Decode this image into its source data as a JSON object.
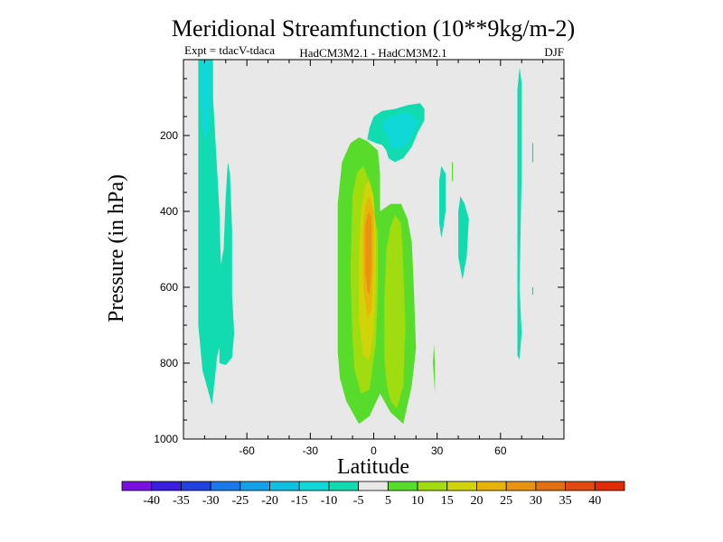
{
  "chart_data": {
    "type": "contour",
    "title": "Meridional Streamfunction (10**9kg/m-2)",
    "subtitle_left": "Expt = tdacV-tdaca",
    "subtitle_center": "HadCM3M2.1 - HadCM3M2.1",
    "subtitle_right": "DJF",
    "xlabel": "Latitude",
    "ylabel": "Pressure (in hPa)",
    "xlim": [
      -90,
      90
    ],
    "ylim": [
      1000,
      0
    ],
    "x_ticks": [
      -60,
      -30,
      0,
      30,
      60
    ],
    "y_ticks": [
      200,
      400,
      600,
      800,
      1000
    ],
    "background_color": "#e8e8e8",
    "colorbar": {
      "levels": [
        "-40",
        "-35",
        "-30",
        "-25",
        "-20",
        "-15",
        "-10",
        "-5",
        "5",
        "10",
        "15",
        "20",
        "25",
        "30",
        "35",
        "40"
      ],
      "colors": [
        "#7a10e0",
        "#3a1ee0",
        "#2040e0",
        "#1a78e8",
        "#14a0e8",
        "#10c0e0",
        "#10d8d8",
        "#10dcb0",
        "#e8e8e8",
        "#58dc2c",
        "#a0dc10",
        "#d2d40a",
        "#e8b40a",
        "#e89410",
        "#e07010",
        "#e04a10",
        "#e02a08"
      ]
    },
    "regions": [
      {
        "name": "neg-sh-column",
        "level": "-10 to -5",
        "color": "#10dcb0",
        "outline": [
          [
            -83,
            0
          ],
          [
            -76,
            0
          ],
          [
            -76,
            100
          ],
          [
            -75,
            200
          ],
          [
            -73,
            400
          ],
          [
            -72,
            600
          ],
          [
            -72,
            740
          ],
          [
            -74,
            780
          ],
          [
            -75.5,
            860
          ],
          [
            -76.5,
            910
          ],
          [
            -78,
            880
          ],
          [
            -81,
            820
          ],
          [
            -83,
            700
          ],
          [
            -83,
            300
          ]
        ]
      },
      {
        "name": "neg-sh-tongue",
        "level": "-10 to -5",
        "color": "#10dcb0",
        "outline": [
          [
            -73,
            560
          ],
          [
            -71,
            500
          ],
          [
            -70,
            360
          ],
          [
            -69,
            270
          ],
          [
            -68,
            300
          ],
          [
            -67,
            450
          ],
          [
            -67,
            620
          ],
          [
            -66,
            720
          ],
          [
            -67,
            785
          ],
          [
            -70,
            805
          ],
          [
            -73,
            800
          ]
        ]
      },
      {
        "name": "neg-sh-core",
        "level": "-15 to -10",
        "color": "#10d8d8",
        "outline": [
          [
            -82,
            0
          ],
          [
            -77,
            0
          ],
          [
            -77,
            100
          ],
          [
            -78,
            180
          ],
          [
            -79,
            210
          ],
          [
            -81,
            180
          ],
          [
            -82,
            100
          ]
        ]
      },
      {
        "name": "neg-upper",
        "level": "-10 to -5",
        "color": "#10dcb0",
        "outline": [
          [
            -3,
            210
          ],
          [
            -2,
            180
          ],
          [
            0,
            150
          ],
          [
            4,
            135
          ],
          [
            10,
            130
          ],
          [
            16,
            120
          ],
          [
            22,
            115
          ],
          [
            24,
            130
          ],
          [
            24,
            160
          ],
          [
            21,
            190
          ],
          [
            18,
            230
          ],
          [
            14,
            260
          ],
          [
            10,
            270
          ],
          [
            7,
            260
          ],
          [
            6,
            240
          ],
          [
            4,
            225
          ],
          [
            1,
            220
          ]
        ]
      },
      {
        "name": "neg-upper-core",
        "level": "-15 to -10",
        "color": "#10d8d8",
        "outline": [
          [
            4,
            180
          ],
          [
            5,
            160
          ],
          [
            8,
            150
          ],
          [
            11,
            145
          ],
          [
            16,
            140
          ],
          [
            21,
            160
          ],
          [
            20,
            185
          ],
          [
            16,
            220
          ],
          [
            12,
            235
          ],
          [
            8,
            230
          ],
          [
            7,
            210
          ],
          [
            6,
            195
          ]
        ]
      },
      {
        "name": "neg-nh-strip-1",
        "level": "-10 to -5",
        "color": "#10dcb0",
        "outline": [
          [
            31,
            320
          ],
          [
            32,
            280
          ],
          [
            34,
            300
          ],
          [
            34,
            400
          ],
          [
            33,
            440
          ],
          [
            32,
            470
          ],
          [
            31,
            430
          ]
        ]
      },
      {
        "name": "neg-nh-strip-2",
        "level": "-10 to -5",
        "color": "#10dcb0",
        "outline": [
          [
            40,
            460
          ],
          [
            40,
            400
          ],
          [
            41,
            360
          ],
          [
            43,
            380
          ],
          [
            45,
            420
          ],
          [
            44,
            520
          ],
          [
            42,
            580
          ],
          [
            40,
            520
          ]
        ]
      },
      {
        "name": "neg-nh-strip-3",
        "level": "-10 to -5",
        "color": "#10dcb0",
        "outline": [
          [
            68,
            150
          ],
          [
            68,
            80
          ],
          [
            69,
            20
          ],
          [
            70,
            60
          ],
          [
            70,
            300
          ],
          [
            69,
            600
          ],
          [
            70,
            720
          ],
          [
            69,
            790
          ],
          [
            68,
            780
          ],
          [
            68,
            500
          ]
        ]
      },
      {
        "name": "neg-nh-speck-1",
        "level": "-10 to -5",
        "color": "#10dcb0",
        "outline": [
          [
            75,
            270
          ],
          [
            75,
            220
          ],
          [
            75.5,
            220
          ],
          [
            75.5,
            270
          ]
        ]
      },
      {
        "name": "neg-nh-speck-2",
        "level": "-10 to -5",
        "color": "#10dcb0",
        "outline": [
          [
            75,
            620
          ],
          [
            75,
            600
          ],
          [
            75.5,
            600
          ],
          [
            75.5,
            620
          ]
        ]
      },
      {
        "name": "pos-main",
        "level": "5 to 10",
        "color": "#58dc2c",
        "outline": [
          [
            -17,
            770
          ],
          [
            -17,
            380
          ],
          [
            -15,
            270
          ],
          [
            -11,
            220
          ],
          [
            -7,
            205
          ],
          [
            -3,
            215
          ],
          [
            2,
            240
          ],
          [
            3,
            300
          ],
          [
            3,
            400
          ],
          [
            8,
            380
          ],
          [
            13,
            380
          ],
          [
            16,
            420
          ],
          [
            18,
            480
          ],
          [
            19,
            600
          ],
          [
            20,
            760
          ],
          [
            18,
            860
          ],
          [
            14,
            960
          ],
          [
            8,
            930
          ],
          [
            3,
            880
          ],
          [
            -2,
            940
          ],
          [
            -7,
            960
          ],
          [
            -13,
            900
          ],
          [
            -16,
            840
          ]
        ]
      },
      {
        "name": "pos-inner-left",
        "level": "10 to 15",
        "color": "#a0dc10",
        "outline": [
          [
            -10,
            740
          ],
          [
            -11,
            560
          ],
          [
            -10,
            360
          ],
          [
            -8,
            300
          ],
          [
            -5,
            280
          ],
          [
            -2,
            320
          ],
          [
            0,
            400
          ],
          [
            2,
            460
          ],
          [
            2,
            600
          ],
          [
            1,
            750
          ],
          [
            -2,
            870
          ],
          [
            -6,
            880
          ],
          [
            -9,
            820
          ]
        ]
      },
      {
        "name": "pos-inner-right",
        "level": "10 to 15",
        "color": "#a0dc10",
        "outline": [
          [
            5,
            780
          ],
          [
            5,
            640
          ],
          [
            6,
            500
          ],
          [
            8,
            440
          ],
          [
            10,
            410
          ],
          [
            13,
            430
          ],
          [
            14,
            550
          ],
          [
            15,
            700
          ],
          [
            14,
            860
          ],
          [
            11,
            920
          ],
          [
            8,
            900
          ],
          [
            6,
            850
          ]
        ]
      },
      {
        "name": "pos-level-3",
        "level": "15 to 20",
        "color": "#d2d40a",
        "outline": [
          [
            -7,
            680
          ],
          [
            -7,
            520
          ],
          [
            -6,
            400
          ],
          [
            -4,
            330
          ],
          [
            -2,
            320
          ],
          [
            0,
            360
          ],
          [
            1,
            460
          ],
          [
            1,
            600
          ],
          [
            0,
            720
          ],
          [
            -2,
            790
          ],
          [
            -5,
            780
          ]
        ]
      },
      {
        "name": "pos-level-4",
        "level": "20 to 25",
        "color": "#e8b40a",
        "outline": [
          [
            -5,
            600
          ],
          [
            -5,
            450
          ],
          [
            -4,
            380
          ],
          [
            -2,
            360
          ],
          [
            0,
            400
          ],
          [
            0,
            520
          ],
          [
            -1,
            660
          ],
          [
            -3,
            680
          ]
        ]
      },
      {
        "name": "pos-level-5",
        "level": "25 to 30",
        "color": "#e89410",
        "outline": [
          [
            -4,
            560
          ],
          [
            -4,
            440
          ],
          [
            -3,
            410
          ],
          [
            -2,
            400
          ],
          [
            -1,
            420
          ],
          [
            -1,
            540
          ],
          [
            -2,
            620
          ],
          [
            -3,
            610
          ]
        ]
      },
      {
        "name": "pos-speck-1",
        "level": "5 to 10",
        "color": "#58dc2c",
        "outline": [
          [
            29,
            880
          ],
          [
            28,
            800
          ],
          [
            28.5,
            750
          ],
          [
            29,
            800
          ]
        ]
      },
      {
        "name": "pos-speck-2",
        "level": "5 to 10",
        "color": "#58dc2c",
        "outline": [
          [
            37,
            320
          ],
          [
            37,
            270
          ],
          [
            37.5,
            270
          ],
          [
            37.5,
            320
          ]
        ]
      }
    ]
  }
}
